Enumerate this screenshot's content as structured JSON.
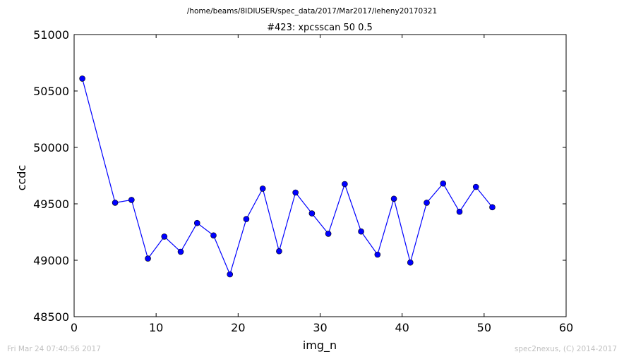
{
  "header": {
    "path": "/home/beams/8IDIUSER/spec_data/2017/Mar2017/leheny20170321",
    "scan_title": "#423: xpcsscan 50 0.5"
  },
  "footer": {
    "timestamp": "Fri Mar 24 07:40:56 2017",
    "credit": "spec2nexus, (C) 2014-2017"
  },
  "colors": {
    "series": "#0000ff",
    "axes": "#000000"
  },
  "chart_data": {
    "type": "line",
    "xlabel": "img_n",
    "ylabel": "ccdc",
    "xlim": [
      0,
      60
    ],
    "ylim": [
      48500,
      51000
    ],
    "xticks": [
      0,
      10,
      20,
      30,
      40,
      50,
      60
    ],
    "yticks": [
      48500,
      49000,
      49500,
      50000,
      50500,
      51000
    ],
    "grid": false,
    "markers": "circle",
    "series": [
      {
        "x": [
          1,
          5,
          7,
          9,
          11,
          13,
          15,
          17,
          19,
          21,
          23,
          25,
          27,
          29,
          31,
          33,
          35,
          37,
          39,
          41,
          43,
          45,
          47,
          49,
          51
        ],
        "y": [
          50610,
          49510,
          49535,
          49015,
          49210,
          49075,
          49330,
          49220,
          48875,
          49365,
          49635,
          49080,
          49600,
          49415,
          49235,
          49675,
          49255,
          49050,
          49545,
          48980,
          49510,
          49680,
          49430,
          49650,
          49470
        ]
      }
    ]
  }
}
